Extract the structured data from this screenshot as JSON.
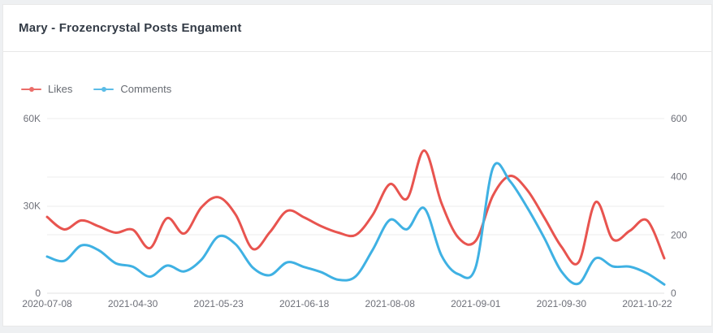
{
  "header": {
    "title": "Mary - Frozencrystal Posts Engament"
  },
  "chart_data": {
    "type": "line",
    "title": "Mary - Frozencrystal Posts Engament",
    "legend": [
      "Likes",
      "Comments"
    ],
    "legend_position": "top-left",
    "grid": true,
    "smooth": true,
    "num_points": 37,
    "label_every": 5,
    "x_labels_shown": [
      "2020-07-08",
      "2021-04-30",
      "2021-05-23",
      "2021-06-18",
      "2021-08-08",
      "2021-09-01",
      "2021-09-30",
      "2021-10-22"
    ],
    "left_axis": {
      "max": 60000,
      "ticks": [
        0,
        30000,
        60000
      ],
      "labels": [
        "0",
        "30K",
        "60K"
      ]
    },
    "right_axis": {
      "max": 600,
      "ticks": [
        0,
        200,
        400,
        600
      ],
      "labels": [
        "0",
        "200",
        "400",
        "600"
      ]
    },
    "series": [
      {
        "name": "Likes",
        "axis": "left",
        "color": "#e8544f",
        "values": [
          26200,
          21900,
          25000,
          23000,
          20800,
          21800,
          15500,
          25800,
          20500,
          29500,
          33000,
          27000,
          15200,
          21000,
          28300,
          26000,
          23000,
          20800,
          20000,
          27000,
          37500,
          32500,
          49000,
          31000,
          19000,
          18000,
          33500,
          40300,
          35500,
          26000,
          16000,
          10600,
          31300,
          18500,
          21500,
          25000,
          12000
        ]
      },
      {
        "name": "Comments",
        "axis": "right",
        "color": "#3fb1e3",
        "values": [
          126,
          111,
          164,
          148,
          103,
          91,
          57,
          95,
          75,
          115,
          195,
          168,
          88,
          62,
          106,
          90,
          72,
          46,
          58,
          150,
          252,
          220,
          292,
          130,
          65,
          90,
          430,
          385,
          295,
          190,
          75,
          33,
          120,
          92,
          91,
          68,
          30
        ]
      }
    ]
  },
  "colors": {
    "grid_line": "#ededed",
    "baseline": "#e0e0e0",
    "axis_text": "#6e7079",
    "title_text": "#333b46",
    "card_bg": "#ffffff",
    "page_bg": "#eef0f2"
  }
}
